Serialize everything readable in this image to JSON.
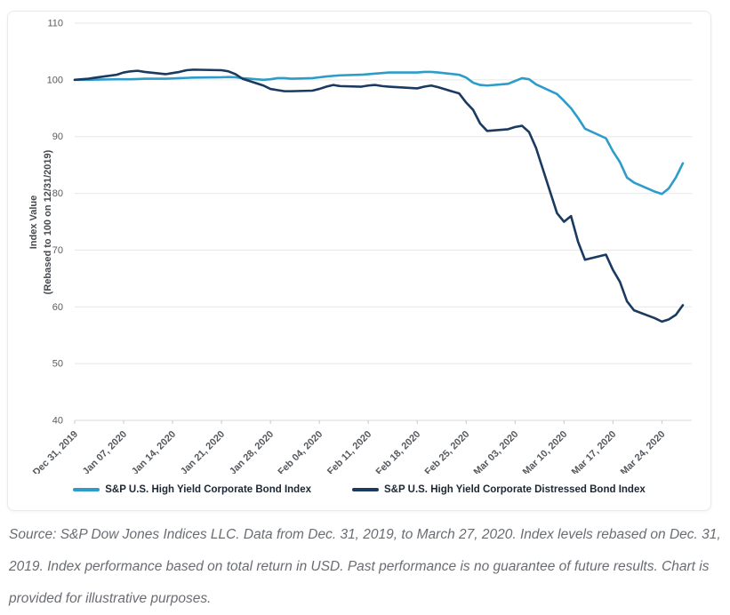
{
  "chart_data": {
    "type": "line",
    "title": "",
    "ylabel": "Index Value",
    "ylabel_sub": "(Rebased to 100 on 12/31/2019)",
    "ylim": [
      40,
      110
    ],
    "yticks": [
      40,
      50,
      60,
      70,
      80,
      90,
      100,
      110
    ],
    "grid": "horizontal",
    "legend_position": "bottom",
    "xtick_dates": [
      "2019-12-31",
      "2020-01-07",
      "2020-01-14",
      "2020-01-21",
      "2020-01-28",
      "2020-02-04",
      "2020-02-11",
      "2020-02-18",
      "2020-02-25",
      "2020-03-03",
      "2020-03-10",
      "2020-03-17",
      "2020-03-24"
    ],
    "xtick_labels": [
      "Dec 31, 2019",
      "Jan 07, 2020",
      "Jan 14, 2020",
      "Jan 21, 2020",
      "Jan 28, 2020",
      "Feb 04, 2020",
      "Feb 11, 2020",
      "Feb 18, 2020",
      "Feb 25, 2020",
      "Mar 03, 2020",
      "Mar 10, 2020",
      "Mar 17, 2020",
      "Mar 24, 2020"
    ],
    "x": [
      "2019-12-31",
      "2020-01-02",
      "2020-01-03",
      "2020-01-06",
      "2020-01-07",
      "2020-01-08",
      "2020-01-09",
      "2020-01-10",
      "2020-01-13",
      "2020-01-14",
      "2020-01-15",
      "2020-01-16",
      "2020-01-17",
      "2020-01-21",
      "2020-01-22",
      "2020-01-23",
      "2020-01-24",
      "2020-01-27",
      "2020-01-28",
      "2020-01-29",
      "2020-01-30",
      "2020-01-31",
      "2020-02-03",
      "2020-02-04",
      "2020-02-05",
      "2020-02-06",
      "2020-02-07",
      "2020-02-10",
      "2020-02-11",
      "2020-02-12",
      "2020-02-13",
      "2020-02-14",
      "2020-02-18",
      "2020-02-19",
      "2020-02-20",
      "2020-02-21",
      "2020-02-24",
      "2020-02-25",
      "2020-02-26",
      "2020-02-27",
      "2020-02-28",
      "2020-03-02",
      "2020-03-03",
      "2020-03-04",
      "2020-03-05",
      "2020-03-06",
      "2020-03-09",
      "2020-03-10",
      "2020-03-11",
      "2020-03-12",
      "2020-03-13",
      "2020-03-16",
      "2020-03-17",
      "2020-03-18",
      "2020-03-19",
      "2020-03-20",
      "2020-03-23",
      "2020-03-24",
      "2020-03-25",
      "2020-03-26",
      "2020-03-27"
    ],
    "series": [
      {
        "name": "S&P U.S. High Yield Corporate Bond Index",
        "color": "#2D9CCA",
        "values": [
          100,
          100,
          100.05,
          100.1,
          100.1,
          100.1,
          100.15,
          100.2,
          100.2,
          100.25,
          100.3,
          100.35,
          100.4,
          100.45,
          100.5,
          100.45,
          100.3,
          100,
          100.1,
          100.3,
          100.3,
          100.2,
          100.3,
          100.45,
          100.6,
          100.7,
          100.8,
          100.9,
          101,
          101.1,
          101.2,
          101.3,
          101.3,
          101.4,
          101.4,
          101.3,
          100.9,
          100.4,
          99.5,
          99.1,
          99,
          99.3,
          99.8,
          100.3,
          100.1,
          99.2,
          97.5,
          96.3,
          95,
          93.3,
          91.4,
          89.7,
          87.4,
          85.5,
          82.8,
          81.9,
          80.3,
          79.9,
          80.9,
          82.8,
          85.3
        ]
      },
      {
        "name": "S&P U.S. High Yield Corporate Distressed Bond Index",
        "color": "#1A3A60",
        "values": [
          100,
          100.2,
          100.4,
          100.9,
          101.3,
          101.5,
          101.6,
          101.4,
          101,
          101.2,
          101.4,
          101.7,
          101.8,
          101.7,
          101.5,
          101,
          100.2,
          99,
          98.4,
          98.2,
          98,
          98,
          98.1,
          98.4,
          98.8,
          99.1,
          98.9,
          98.8,
          99,
          99.1,
          98.9,
          98.8,
          98.5,
          98.8,
          99,
          98.7,
          97.6,
          96,
          94.7,
          92.3,
          91,
          91.3,
          91.7,
          91.9,
          90.8,
          88,
          76.5,
          75,
          76,
          71.5,
          68.3,
          69.2,
          66.5,
          64.4,
          61,
          59.4,
          58,
          57.4,
          57.8,
          58.6,
          60.3
        ]
      }
    ]
  },
  "footer": {
    "source_text": "Source: S&P Dow Jones Indices LLC. Data from Dec. 31, 2019, to March 27, 2020. Index levels rebased on Dec. 31, 2019. Index performance based on total return in USD. Past performance is no guarantee of future results. Chart is provided for illustrative purposes."
  }
}
